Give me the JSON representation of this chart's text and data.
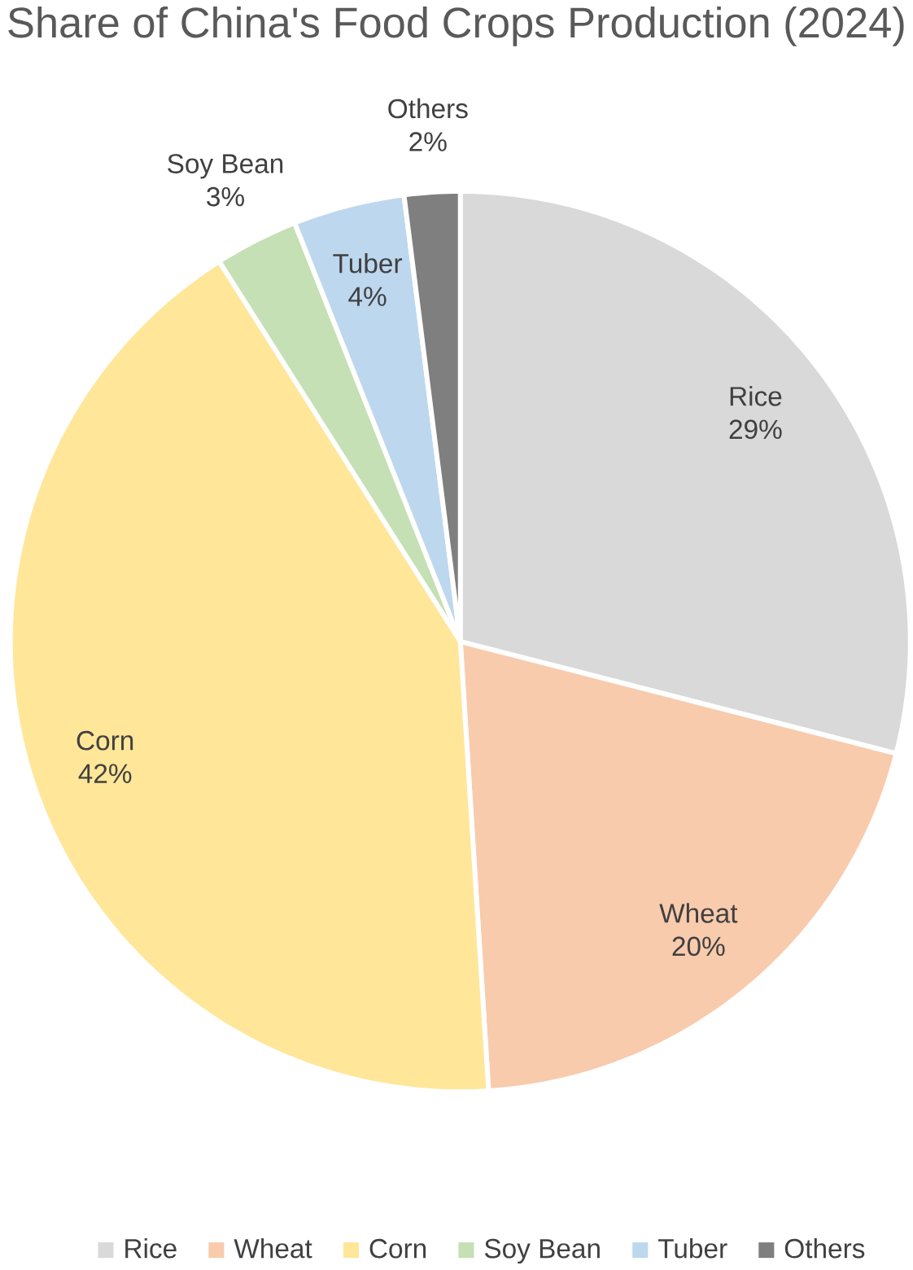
{
  "chart_data": {
    "type": "pie",
    "title": "Share of China's Food Crops Production (2024)",
    "categories": [
      "Rice",
      "Wheat",
      "Corn",
      "Soy Bean",
      "Tuber",
      "Others"
    ],
    "values": [
      29,
      20,
      42,
      3,
      4,
      2
    ],
    "value_labels": [
      "29%",
      "20%",
      "42%",
      "3%",
      "4%",
      "2%"
    ],
    "colors": [
      "#d9d9d9",
      "#f8cbad",
      "#ffe699",
      "#c5e0b4",
      "#bdd7ee",
      "#7f7f7f"
    ],
    "legend": "bottom"
  }
}
